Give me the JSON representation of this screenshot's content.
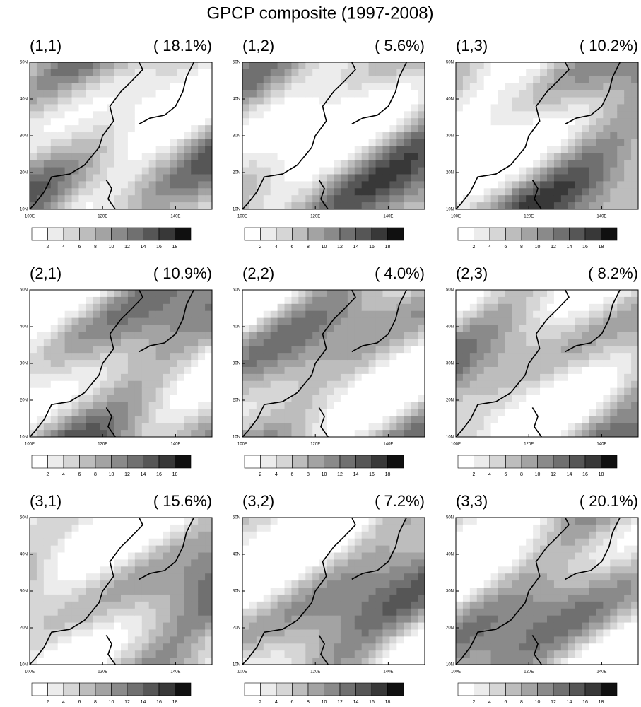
{
  "title": "GPCP composite (1997-2008)",
  "panels": [
    {
      "label": "(1,1)",
      "percent": "( 18.1%)"
    },
    {
      "label": "(1,2)",
      "percent": "(  5.6%)"
    },
    {
      "label": "(1,3)",
      "percent": "( 10.2%)"
    },
    {
      "label": "(2,1)",
      "percent": "( 10.9%)"
    },
    {
      "label": "(2,2)",
      "percent": "(  4.0%)"
    },
    {
      "label": "(2,3)",
      "percent": "(  8.2%)"
    },
    {
      "label": "(3,1)",
      "percent": "( 15.6%)"
    },
    {
      "label": "(3,2)",
      "percent": "(  7.2%)"
    },
    {
      "label": "(3,3)",
      "percent": "( 20.1%)"
    }
  ],
  "lat_labels": [
    "50N",
    "40N",
    "30N",
    "20N",
    "10N"
  ],
  "lon_labels": [
    "100E",
    "120E",
    "140E"
  ],
  "colorbar_labels": [
    2,
    4,
    6,
    8,
    10,
    12,
    14,
    16,
    18
  ]
}
